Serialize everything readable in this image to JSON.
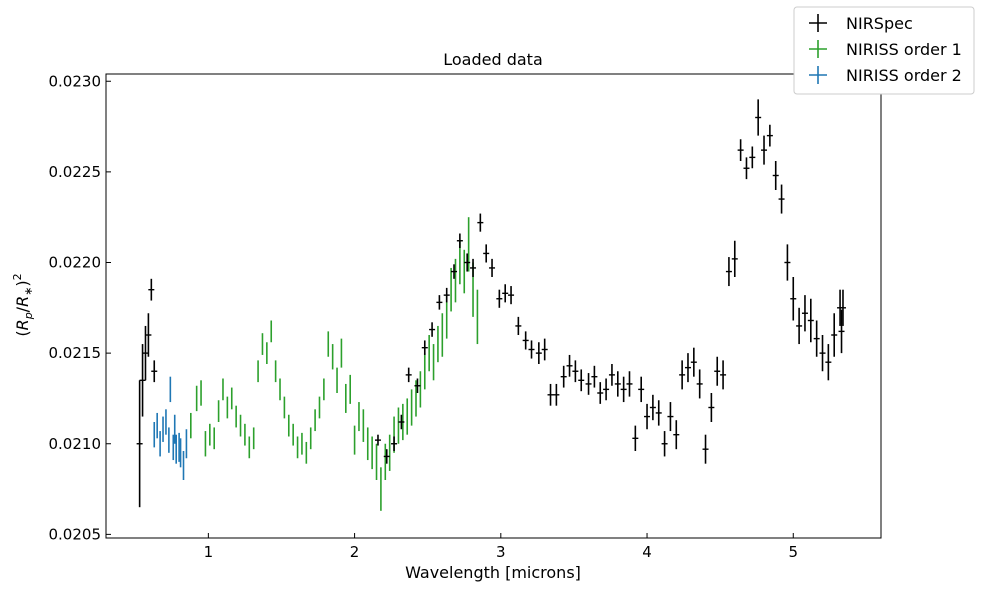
{
  "chart_data": {
    "type": "scatter",
    "title": "Loaded data",
    "xlabel": "Wavelength [microns]",
    "ylabel_parts": {
      "open": "(",
      "num": "R",
      "num_sub": "p",
      "slash": "/",
      "den": "R",
      "den_sub": "∗",
      "close": ")",
      "sup": "2"
    },
    "xlim": [
      0.3,
      5.6
    ],
    "ylim": [
      0.02048,
      0.02304
    ],
    "xticks": [
      {
        "value": 1,
        "label": "1"
      },
      {
        "value": 2,
        "label": "2"
      },
      {
        "value": 3,
        "label": "3"
      },
      {
        "value": 4,
        "label": "4"
      },
      {
        "value": 5,
        "label": "5"
      }
    ],
    "yticks": [
      {
        "value": 0.0205,
        "label": "0.0205"
      },
      {
        "value": 0.021,
        "label": "0.0210"
      },
      {
        "value": 0.0215,
        "label": "0.0215"
      },
      {
        "value": 0.022,
        "label": "0.0220"
      },
      {
        "value": 0.0225,
        "label": "0.0225"
      },
      {
        "value": 0.023,
        "label": "0.0230"
      }
    ],
    "legend_position": "top-right",
    "series": [
      {
        "name": "NIRSpec",
        "color": "#000000",
        "points": [
          [
            0.53,
            0.021,
            0.00035
          ],
          [
            0.55,
            0.02135,
            0.0002
          ],
          [
            0.57,
            0.0215,
            0.00015
          ],
          [
            0.59,
            0.0216,
            0.00012
          ],
          [
            0.61,
            0.02185,
            6e-05
          ],
          [
            0.63,
            0.0214,
            6e-05
          ],
          [
            2.16,
            0.02102,
            3e-05
          ],
          [
            2.22,
            0.02093,
            4e-05
          ],
          [
            2.27,
            0.021,
            4e-05
          ],
          [
            2.32,
            0.02112,
            4e-05
          ],
          [
            2.37,
            0.02138,
            4e-05
          ],
          [
            2.43,
            0.02132,
            4e-05
          ],
          [
            2.48,
            0.02153,
            4e-05
          ],
          [
            2.53,
            0.02163,
            4e-05
          ],
          [
            2.58,
            0.02178,
            4e-05
          ],
          [
            2.63,
            0.02182,
            4e-05
          ],
          [
            2.68,
            0.02195,
            4e-05
          ],
          [
            2.72,
            0.02212,
            4e-05
          ],
          [
            2.77,
            0.022,
            5e-05
          ],
          [
            2.81,
            0.02197,
            5e-05
          ],
          [
            2.86,
            0.02222,
            5e-05
          ],
          [
            2.9,
            0.02205,
            5e-05
          ],
          [
            2.94,
            0.02197,
            5e-05
          ],
          [
            2.99,
            0.0218,
            5e-05
          ],
          [
            3.03,
            0.02183,
            5e-05
          ],
          [
            3.07,
            0.02182,
            5e-05
          ],
          [
            3.12,
            0.02165,
            5e-05
          ],
          [
            3.17,
            0.02157,
            5e-05
          ],
          [
            3.21,
            0.02152,
            5e-05
          ],
          [
            3.26,
            0.0215,
            6e-05
          ],
          [
            3.3,
            0.02152,
            6e-05
          ],
          [
            3.34,
            0.02127,
            6e-05
          ],
          [
            3.38,
            0.02127,
            6e-05
          ],
          [
            3.43,
            0.02137,
            6e-05
          ],
          [
            3.47,
            0.02143,
            6e-05
          ],
          [
            3.51,
            0.0214,
            6e-05
          ],
          [
            3.55,
            0.02135,
            6e-05
          ],
          [
            3.6,
            0.02133,
            6e-05
          ],
          [
            3.64,
            0.02137,
            6e-05
          ],
          [
            3.68,
            0.02128,
            6e-05
          ],
          [
            3.72,
            0.0213,
            6e-05
          ],
          [
            3.76,
            0.02138,
            6e-05
          ],
          [
            3.8,
            0.02133,
            7e-05
          ],
          [
            3.84,
            0.0213,
            7e-05
          ],
          [
            3.88,
            0.02133,
            7e-05
          ],
          [
            3.92,
            0.02103,
            7e-05
          ],
          [
            3.96,
            0.0213,
            7e-05
          ],
          [
            4.0,
            0.02115,
            7e-05
          ],
          [
            4.04,
            0.0212,
            7e-05
          ],
          [
            4.08,
            0.02117,
            7e-05
          ],
          [
            4.12,
            0.021,
            7e-05
          ],
          [
            4.16,
            0.02115,
            8e-05
          ],
          [
            4.2,
            0.02105,
            8e-05
          ],
          [
            4.24,
            0.02138,
            8e-05
          ],
          [
            4.28,
            0.02142,
            8e-05
          ],
          [
            4.32,
            0.02145,
            8e-05
          ],
          [
            4.36,
            0.02133,
            8e-05
          ],
          [
            4.4,
            0.02097,
            8e-05
          ],
          [
            4.44,
            0.0212,
            8e-05
          ],
          [
            4.48,
            0.0214,
            8e-05
          ],
          [
            4.52,
            0.02138,
            8e-05
          ],
          [
            4.56,
            0.02195,
            8e-05
          ],
          [
            4.6,
            0.02202,
            0.0001
          ],
          [
            4.64,
            0.02262,
            6e-05
          ],
          [
            4.68,
            0.02252,
            6e-05
          ],
          [
            4.72,
            0.02258,
            6e-05
          ],
          [
            4.76,
            0.0228,
            0.0001
          ],
          [
            4.8,
            0.02262,
            8e-05
          ],
          [
            4.84,
            0.0227,
            6e-05
          ],
          [
            4.88,
            0.02248,
            8e-05
          ],
          [
            4.92,
            0.02235,
            8e-05
          ],
          [
            4.96,
            0.022,
            0.0001
          ],
          [
            5.0,
            0.0218,
            0.00012
          ],
          [
            5.04,
            0.02165,
            0.0001
          ],
          [
            5.08,
            0.02172,
            0.0001
          ],
          [
            5.12,
            0.02168,
            0.00012
          ],
          [
            5.16,
            0.02158,
            0.0001
          ],
          [
            5.2,
            0.0215,
            0.0001
          ],
          [
            5.24,
            0.02145,
            0.0001
          ],
          [
            5.28,
            0.0216,
            0.00012
          ],
          [
            5.32,
            0.02175,
            0.0001
          ],
          [
            5.33,
            0.02162,
            0.00012
          ],
          [
            5.34,
            0.02175,
            0.0001
          ]
        ]
      },
      {
        "name": "NIRISS order 1",
        "color": "#2ca02c",
        "points": [
          [
            0.88,
            0.0211,
            7e-05
          ],
          [
            0.92,
            0.02125,
            7e-05
          ],
          [
            0.95,
            0.02128,
            7e-05
          ],
          [
            0.98,
            0.021,
            7e-05
          ],
          [
            1.01,
            0.02105,
            6e-05
          ],
          [
            1.04,
            0.02103,
            6e-05
          ],
          [
            1.07,
            0.02118,
            6e-05
          ],
          [
            1.1,
            0.0213,
            6e-05
          ],
          [
            1.13,
            0.0212,
            6e-05
          ],
          [
            1.16,
            0.02125,
            6e-05
          ],
          [
            1.19,
            0.02115,
            6e-05
          ],
          [
            1.22,
            0.0211,
            6e-05
          ],
          [
            1.25,
            0.02105,
            6e-05
          ],
          [
            1.28,
            0.02098,
            6e-05
          ],
          [
            1.31,
            0.02103,
            6e-05
          ],
          [
            1.34,
            0.0214,
            6e-05
          ],
          [
            1.37,
            0.02155,
            6e-05
          ],
          [
            1.4,
            0.0215,
            6e-05
          ],
          [
            1.43,
            0.02162,
            6e-05
          ],
          [
            1.46,
            0.0214,
            6e-05
          ],
          [
            1.49,
            0.0213,
            6e-05
          ],
          [
            1.52,
            0.0212,
            6e-05
          ],
          [
            1.55,
            0.0211,
            6e-05
          ],
          [
            1.58,
            0.02105,
            6e-05
          ],
          [
            1.61,
            0.02098,
            6e-05
          ],
          [
            1.64,
            0.021,
            6e-05
          ],
          [
            1.67,
            0.02095,
            6e-05
          ],
          [
            1.7,
            0.02103,
            6e-05
          ],
          [
            1.73,
            0.02113,
            6e-05
          ],
          [
            1.76,
            0.0212,
            6e-05
          ],
          [
            1.79,
            0.0213,
            6e-05
          ],
          [
            1.82,
            0.02155,
            7e-05
          ],
          [
            1.85,
            0.02148,
            7e-05
          ],
          [
            1.88,
            0.02135,
            7e-05
          ],
          [
            1.91,
            0.0215,
            8e-05
          ],
          [
            1.94,
            0.02125,
            8e-05
          ],
          [
            1.97,
            0.0213,
            8e-05
          ],
          [
            2.0,
            0.02102,
            8e-05
          ],
          [
            2.03,
            0.02115,
            8e-05
          ],
          [
            2.06,
            0.0211,
            9e-05
          ],
          [
            2.09,
            0.021,
            9e-05
          ],
          [
            2.12,
            0.02095,
            9e-05
          ],
          [
            2.15,
            0.0209,
            0.0001
          ],
          [
            2.18,
            0.02075,
            0.00012
          ],
          [
            2.21,
            0.0209,
            0.0001
          ],
          [
            2.24,
            0.02095,
            0.0001
          ],
          [
            2.27,
            0.02105,
            0.0001
          ],
          [
            2.3,
            0.0211,
            0.0001
          ],
          [
            2.33,
            0.02112,
            0.0001
          ],
          [
            2.36,
            0.02115,
            0.0001
          ],
          [
            2.39,
            0.0212,
            0.0001
          ],
          [
            2.42,
            0.02125,
            0.0001
          ],
          [
            2.45,
            0.0213,
            0.0001
          ],
          [
            2.48,
            0.0214,
            0.0001
          ],
          [
            2.51,
            0.0215,
            0.0001
          ],
          [
            2.54,
            0.02145,
            0.0001
          ],
          [
            2.57,
            0.02155,
            0.0001
          ],
          [
            2.6,
            0.0216,
            0.00012
          ],
          [
            2.63,
            0.0217,
            0.00012
          ],
          [
            2.66,
            0.02185,
            0.00012
          ],
          [
            2.69,
            0.0219,
            0.00012
          ],
          [
            2.72,
            0.022,
            0.00012
          ],
          [
            2.75,
            0.02195,
            0.00012
          ],
          [
            2.78,
            0.0221,
            0.00015
          ],
          [
            2.81,
            0.02185,
            0.00015
          ],
          [
            2.84,
            0.0217,
            0.00015
          ]
        ]
      },
      {
        "name": "NIRISS order 2",
        "color": "#1f77b4",
        "points": [
          [
            0.63,
            0.02105,
            7e-05
          ],
          [
            0.65,
            0.0211,
            7e-05
          ],
          [
            0.67,
            0.021,
            7e-05
          ],
          [
            0.69,
            0.02108,
            7e-05
          ],
          [
            0.71,
            0.02112,
            7e-05
          ],
          [
            0.73,
            0.02102,
            7e-05
          ],
          [
            0.74,
            0.0213,
            7e-05
          ],
          [
            0.76,
            0.02098,
            7e-05
          ],
          [
            0.77,
            0.02108,
            8e-05
          ],
          [
            0.78,
            0.02097,
            8e-05
          ],
          [
            0.8,
            0.02098,
            8e-05
          ],
          [
            0.81,
            0.02095,
            8e-05
          ],
          [
            0.83,
            0.02088,
            8e-05
          ],
          [
            0.85,
            0.021,
            8e-05
          ]
        ]
      }
    ]
  }
}
